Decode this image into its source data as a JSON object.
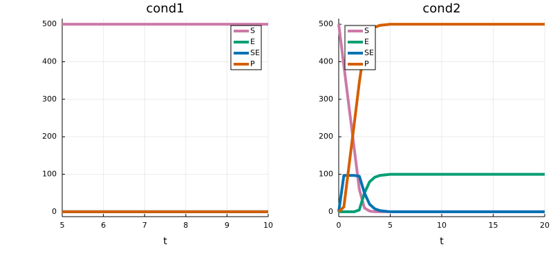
{
  "chart_data": [
    {
      "type": "line",
      "title": "cond1",
      "xlabel": "t",
      "x": [
        5,
        6,
        7,
        8,
        9,
        10
      ],
      "series": [
        {
          "name": "S",
          "color": "#cc79a7",
          "values": [
            500,
            500,
            500,
            500,
            500,
            500
          ]
        },
        {
          "name": "E",
          "color": "#009e73",
          "values": [
            0,
            0,
            0,
            0,
            0,
            0
          ]
        },
        {
          "name": "SE",
          "color": "#0072b2",
          "values": [
            0,
            0,
            0,
            0,
            0,
            0
          ]
        },
        {
          "name": "P",
          "color": "#d55e00",
          "values": [
            0,
            0,
            0,
            0,
            0,
            0
          ]
        }
      ],
      "xlim": [
        5,
        10
      ],
      "xticks": [
        5,
        6,
        7,
        8,
        9,
        10
      ],
      "ylim": [
        -13,
        515
      ],
      "yticks": [
        0,
        100,
        200,
        300,
        400,
        500
      ],
      "grid": true,
      "legend": "topright"
    },
    {
      "type": "line",
      "title": "cond2",
      "xlabel": "t",
      "x": [
        0,
        0.5,
        1,
        1.5,
        2,
        2.5,
        3,
        3.5,
        4,
        5,
        7,
        10,
        15,
        20
      ],
      "series": [
        {
          "name": "S",
          "color": "#cc79a7",
          "values": [
            500,
            390,
            280,
            170,
            60,
            10,
            2,
            0,
            0,
            0,
            0,
            0,
            0,
            0
          ]
        },
        {
          "name": "E",
          "color": "#009e73",
          "values": [
            0,
            0,
            0,
            0,
            5,
            50,
            80,
            92,
            97,
            100,
            100,
            100,
            100,
            100
          ]
        },
        {
          "name": "SE",
          "color": "#0072b2",
          "values": [
            0,
            97,
            97,
            97,
            95,
            50,
            20,
            8,
            3,
            0,
            0,
            0,
            0,
            0
          ]
        },
        {
          "name": "P",
          "color": "#d55e00",
          "values": [
            0,
            13,
            123,
            233,
            345,
            440,
            478,
            492,
            497,
            500,
            500,
            500,
            500,
            500
          ]
        }
      ],
      "xlim": [
        0,
        20
      ],
      "xticks": [
        0,
        5,
        10,
        15,
        20
      ],
      "ylim": [
        -13,
        515
      ],
      "yticks": [
        0,
        100,
        200,
        300,
        400,
        500
      ],
      "grid": true,
      "legend": "topleft"
    }
  ]
}
